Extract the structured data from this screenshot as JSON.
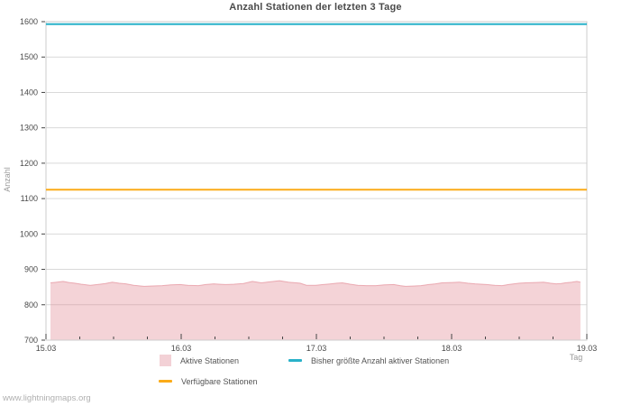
{
  "page": {
    "watermark": "www.lightningmaps.org",
    "background": "#ffffff"
  },
  "chart_data": {
    "type": "area",
    "title": "Anzahl Stationen der letzten 3 Tage",
    "xlabel": "Tag",
    "ylabel": "Anzahl",
    "xlim": [
      0,
      4
    ],
    "ylim": [
      700,
      1600
    ],
    "x_tick_labels": [
      "15.03",
      "16.03",
      "17.03",
      "18.03",
      "19.03"
    ],
    "x_minor_tick_interval": 0.25,
    "y_ticks": [
      700,
      800,
      900,
      1000,
      1100,
      1200,
      1300,
      1400,
      1500,
      1600
    ],
    "grid": "horizontal-only",
    "legend_position": "below-plot",
    "colors": {
      "plot_border": "#cccccc",
      "gridline": "#d9d9d9",
      "tick": "#444444",
      "tick_label": "#4a4a4a",
      "area_fill": "rgba(222,118,132,0.32)",
      "area_edge": "rgba(222,118,132,0.55)",
      "max_line": "#29b1c9",
      "available_line": "#fbab18"
    },
    "series": [
      {
        "name": "Aktive Stationen",
        "type": "area",
        "swatch_color": "#f3d1d6",
        "points": [
          [
            0.033,
            862
          ],
          [
            0.08,
            864
          ],
          [
            0.127,
            866
          ],
          [
            0.17,
            863
          ],
          [
            0.213,
            861
          ],
          [
            0.26,
            858
          ],
          [
            0.327,
            855
          ],
          [
            0.38,
            857
          ],
          [
            0.44,
            860
          ],
          [
            0.49,
            864
          ],
          [
            0.54,
            861
          ],
          [
            0.593,
            859
          ],
          [
            0.65,
            855
          ],
          [
            0.727,
            852
          ],
          [
            0.78,
            853
          ],
          [
            0.86,
            854
          ],
          [
            0.92,
            856
          ],
          [
            0.993,
            857
          ],
          [
            1.05,
            855
          ],
          [
            1.127,
            854
          ],
          [
            1.18,
            857
          ],
          [
            1.24,
            859
          ],
          [
            1.28,
            858
          ],
          [
            1.327,
            857
          ],
          [
            1.39,
            858
          ],
          [
            1.46,
            860
          ],
          [
            1.527,
            866
          ],
          [
            1.593,
            862
          ],
          [
            1.66,
            865
          ],
          [
            1.727,
            868
          ],
          [
            1.793,
            864
          ],
          [
            1.88,
            861
          ],
          [
            1.927,
            855
          ],
          [
            1.993,
            855
          ],
          [
            2.05,
            857
          ],
          [
            2.107,
            859
          ],
          [
            2.15,
            861
          ],
          [
            2.193,
            862
          ],
          [
            2.25,
            858
          ],
          [
            2.307,
            855
          ],
          [
            2.37,
            854
          ],
          [
            2.44,
            854
          ],
          [
            2.5,
            856
          ],
          [
            2.573,
            857
          ],
          [
            2.62,
            854
          ],
          [
            2.66,
            852
          ],
          [
            2.72,
            853
          ],
          [
            2.773,
            854
          ],
          [
            2.83,
            857
          ],
          [
            2.88,
            859
          ],
          [
            2.927,
            862
          ],
          [
            3.0,
            863
          ],
          [
            3.06,
            864
          ],
          [
            3.12,
            861
          ],
          [
            3.173,
            859
          ],
          [
            3.22,
            858
          ],
          [
            3.26,
            857
          ],
          [
            3.32,
            855
          ],
          [
            3.373,
            854
          ],
          [
            3.42,
            857
          ],
          [
            3.46,
            859
          ],
          [
            3.5,
            861
          ],
          [
            3.547,
            862
          ],
          [
            3.62,
            863
          ],
          [
            3.68,
            864
          ],
          [
            3.73,
            861
          ],
          [
            3.773,
            859
          ],
          [
            3.81,
            860
          ],
          [
            3.84,
            862
          ],
          [
            3.89,
            864
          ],
          [
            3.927,
            866
          ],
          [
            3.953,
            864
          ]
        ]
      },
      {
        "name": "Bisher größte Anzahl aktiver Stationen",
        "type": "hline",
        "value": 1593,
        "swatch_color": "#29b1c9"
      },
      {
        "name": "Verfügbare Stationen",
        "type": "hline",
        "value": 1125,
        "swatch_color": "#fbab18"
      }
    ]
  }
}
